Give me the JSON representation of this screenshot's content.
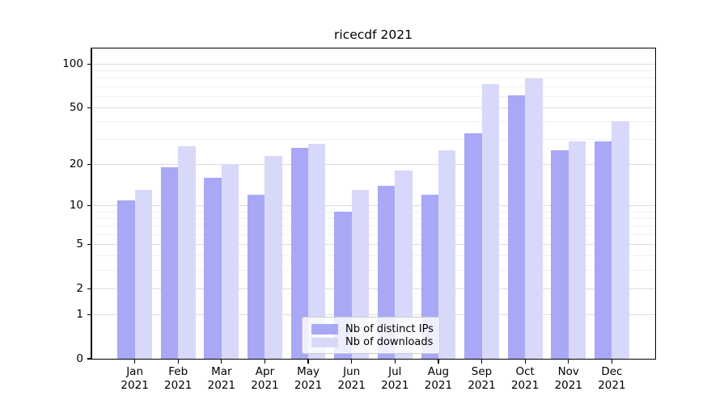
{
  "chart_data": {
    "type": "bar",
    "title": "ricecdf 2021",
    "categories": [
      "Jan 2021",
      "Feb 2021",
      "Mar 2021",
      "Apr 2021",
      "May 2021",
      "Jun 2021",
      "Jul 2021",
      "Aug 2021",
      "Sep 2021",
      "Oct 2021",
      "Nov 2021",
      "Dec 2021"
    ],
    "series": [
      {
        "name": "Nb of distinct IPs",
        "color": "#a8a8f6",
        "values": [
          11,
          19,
          16,
          12,
          26,
          9,
          14,
          12,
          33,
          61,
          25,
          29
        ]
      },
      {
        "name": "Nb of downloads",
        "color": "#d8d8fa",
        "values": [
          13,
          27,
          20,
          23,
          28,
          13,
          18,
          25,
          73,
          80,
          29,
          40
        ]
      }
    ],
    "xlabel": "",
    "ylabel": "",
    "yscale": "log1p",
    "yticks": [
      0,
      1,
      2,
      5,
      10,
      20,
      50,
      100
    ],
    "yticks_minor": [
      3,
      4,
      6,
      7,
      8,
      9,
      30,
      40,
      60,
      70,
      80,
      90
    ],
    "ylim": [
      0,
      128
    ],
    "xlim": [
      -1,
      12
    ],
    "grid": "horizontal",
    "legend_position": "lower center",
    "legend_labels": [
      "Nb of distinct IPs",
      "Nb of downloads"
    ]
  },
  "colors": {
    "ips_bar": "#a8a8f6",
    "downloads_bar": "#d8d8fa",
    "grid_major": "#dcdcdc",
    "grid_minor": "#f0f0f0",
    "spine": "#000000",
    "legend_border": "#cccccc",
    "background": "#ffffff"
  }
}
